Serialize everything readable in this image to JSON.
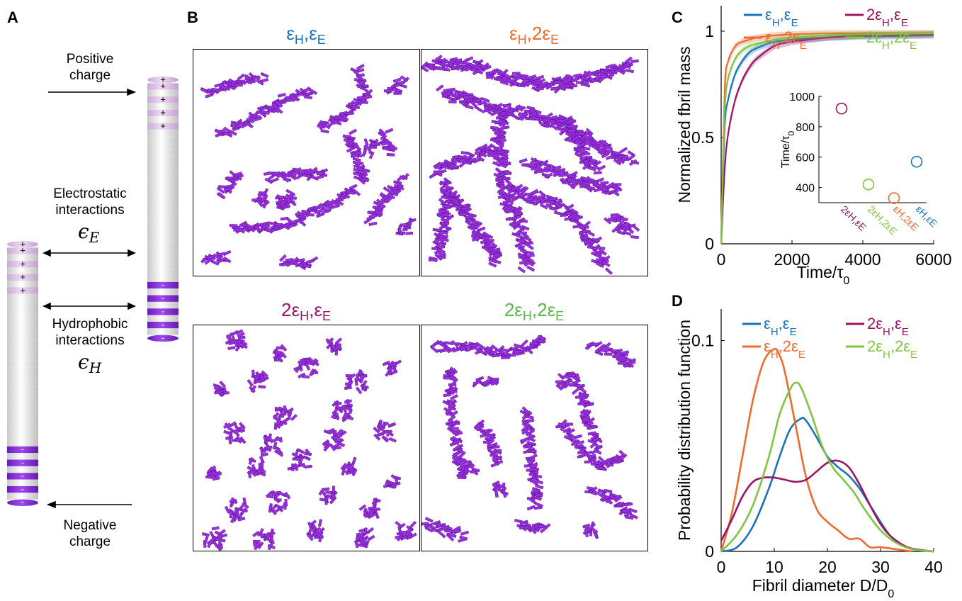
{
  "panel_labels": {
    "a": "A",
    "b": "B",
    "c": "C",
    "d": "D"
  },
  "panel_a": {
    "positive": "Positive charge",
    "electrostatic": "Electrostatic interactions",
    "eps_e": "ϵ",
    "eps_e_sub": "E",
    "hydrophobic": "Hydrophobic interactions",
    "eps_h": "ϵ",
    "eps_h_sub": "H",
    "negative": "Negative charge",
    "plus": "+",
    "minus": "-"
  },
  "panel_b": {
    "sims": [
      {
        "pre": "",
        "sub1": "H",
        "mid": ",",
        "sub2": "E",
        "mult2": "",
        "color": "#1f77b4"
      },
      {
        "pre": "",
        "sub1": "H",
        "mid": ",",
        "sub2": "E",
        "mult2": "2",
        "color": "#f0642a"
      },
      {
        "pre": "2",
        "sub1": "H",
        "mid": ",",
        "sub2": "E",
        "mult2": "",
        "color": "#a0156a"
      },
      {
        "pre": "2",
        "sub1": "H",
        "mid": ",",
        "sub2": "E",
        "mult2": "2",
        "color": "#56b94a"
      }
    ],
    "eps": "ε"
  },
  "colors": {
    "eH_eE": "#1a72bd",
    "eH_2eE": "#f06a2e",
    "2eH_eE": "#9a1466",
    "2eH_2eE": "#82c341",
    "fibril": "#9b30e0",
    "bead_light": "#dcc0e6",
    "bead_dark": "#8a2be2"
  },
  "chart_data": [
    {
      "type": "line",
      "panel": "C",
      "ylabel": "Normalized fbril mass",
      "xlabel": "Time/τ",
      "xlabel_sub": "0",
      "xlim": [
        0,
        6000
      ],
      "ylim": [
        0,
        1.12
      ],
      "xticks": [
        "0",
        "2000",
        "4000",
        "6000"
      ],
      "yticks": [
        "0",
        "0.5",
        "1"
      ],
      "legend": [
        "ε_H,ε_E",
        "ε_H,2ε_E",
        "2ε_H,ε_E",
        "2ε_H,2ε_E"
      ],
      "series": [
        {
          "name": "ε_H,ε_E",
          "key": "eH_eE",
          "x": [
            0,
            100,
            200,
            400,
            600,
            800,
            1000,
            1500,
            2000,
            3000,
            4000,
            6000
          ],
          "y": [
            0,
            0.55,
            0.68,
            0.8,
            0.86,
            0.9,
            0.92,
            0.95,
            0.96,
            0.97,
            0.975,
            0.98
          ]
        },
        {
          "name": "ε_H,2ε_E",
          "key": "eH_2eE",
          "x": [
            0,
            100,
            200,
            400,
            600,
            800,
            1000,
            1500,
            2000,
            3000,
            4000,
            6000
          ],
          "y": [
            0,
            0.72,
            0.86,
            0.93,
            0.95,
            0.96,
            0.97,
            0.98,
            0.985,
            0.99,
            0.99,
            0.99
          ]
        },
        {
          "name": "2ε_H,ε_E",
          "key": "2eH_eE",
          "x": [
            0,
            100,
            200,
            400,
            600,
            800,
            1000,
            1500,
            2000,
            3000,
            4000,
            6000
          ],
          "y": [
            0,
            0.35,
            0.52,
            0.68,
            0.77,
            0.83,
            0.87,
            0.93,
            0.95,
            0.97,
            0.98,
            0.985
          ]
        },
        {
          "name": "2ε_H,2ε_E",
          "key": "2eH_2eE",
          "x": [
            0,
            100,
            200,
            400,
            600,
            800,
            1000,
            1500,
            2000,
            3000,
            4000,
            6000
          ],
          "y": [
            0,
            0.62,
            0.78,
            0.87,
            0.91,
            0.93,
            0.94,
            0.96,
            0.97,
            0.98,
            0.985,
            0.99
          ]
        }
      ]
    },
    {
      "type": "scatter",
      "panel": "C-inset",
      "ylabel": "Time/τ",
      "ylabel_sub": "0",
      "ylim": [
        300,
        1000
      ],
      "yticks": [
        "400",
        "600",
        "800",
        "1000"
      ],
      "categories": [
        "2ε_H,ε_E",
        "2ε_H,2ε_E",
        "ε_H,2ε_E",
        "ε_H,ε_E"
      ],
      "values": [
        920,
        420,
        330,
        570
      ],
      "keys": [
        "2eH_eE",
        "2eH_2eE",
        "eH_2eE",
        "eH_eE"
      ]
    },
    {
      "type": "line",
      "panel": "D",
      "ylabel": "Probability distribution function",
      "xlabel": "Fibril diameter D/D",
      "xlabel_sub": "0",
      "xlim": [
        0,
        40
      ],
      "ylim": [
        0,
        0.115
      ],
      "xticks": [
        "0",
        "10",
        "20",
        "30",
        "40"
      ],
      "yticks": [
        "0",
        "0.1"
      ],
      "legend": [
        "ε_H,ε_E",
        "ε_H,2ε_E",
        "2ε_H,ε_E",
        "2ε_H,2ε_E"
      ],
      "series": [
        {
          "name": "ε_H,ε_E",
          "key": "eH_eE",
          "x": [
            0,
            3,
            6,
            9,
            11,
            13,
            15,
            16,
            18,
            20,
            22,
            24,
            26,
            28,
            30,
            32,
            35,
            38,
            40
          ],
          "y": [
            0,
            0.002,
            0.012,
            0.03,
            0.045,
            0.058,
            0.063,
            0.062,
            0.054,
            0.045,
            0.04,
            0.036,
            0.03,
            0.022,
            0.014,
            0.007,
            0.002,
            0.0005,
            0
          ]
        },
        {
          "name": "ε_H,2ε_E",
          "key": "eH_2eE",
          "x": [
            0,
            2,
            4,
            6,
            8,
            10,
            11,
            12,
            14,
            16,
            18,
            20,
            22,
            24,
            26,
            28,
            30,
            33,
            36
          ],
          "y": [
            0,
            0.018,
            0.045,
            0.072,
            0.09,
            0.096,
            0.093,
            0.085,
            0.06,
            0.035,
            0.02,
            0.014,
            0.01,
            0.006,
            0.006,
            0.002,
            0.002,
            0.001,
            0
          ]
        },
        {
          "name": "2ε_H,ε_E",
          "key": "2eH_eE",
          "x": [
            0,
            2,
            4,
            6,
            8,
            10,
            12,
            14,
            16,
            18,
            20,
            22,
            24,
            26,
            28,
            30,
            32,
            35,
            38,
            40
          ],
          "y": [
            0.005,
            0.015,
            0.026,
            0.033,
            0.035,
            0.035,
            0.034,
            0.033,
            0.034,
            0.038,
            0.042,
            0.043,
            0.04,
            0.032,
            0.022,
            0.013,
            0.007,
            0.002,
            0.0005,
            0
          ]
        },
        {
          "name": "2ε_H,2ε_E",
          "key": "2eH_2eE",
          "x": [
            0,
            3,
            6,
            9,
            11,
            13,
            14,
            15,
            17,
            19,
            21,
            23,
            25,
            27,
            30,
            33,
            36,
            40
          ],
          "y": [
            0,
            0.008,
            0.022,
            0.045,
            0.065,
            0.077,
            0.08,
            0.078,
            0.065,
            0.05,
            0.04,
            0.034,
            0.028,
            0.02,
            0.01,
            0.004,
            0.001,
            0
          ]
        }
      ]
    }
  ]
}
